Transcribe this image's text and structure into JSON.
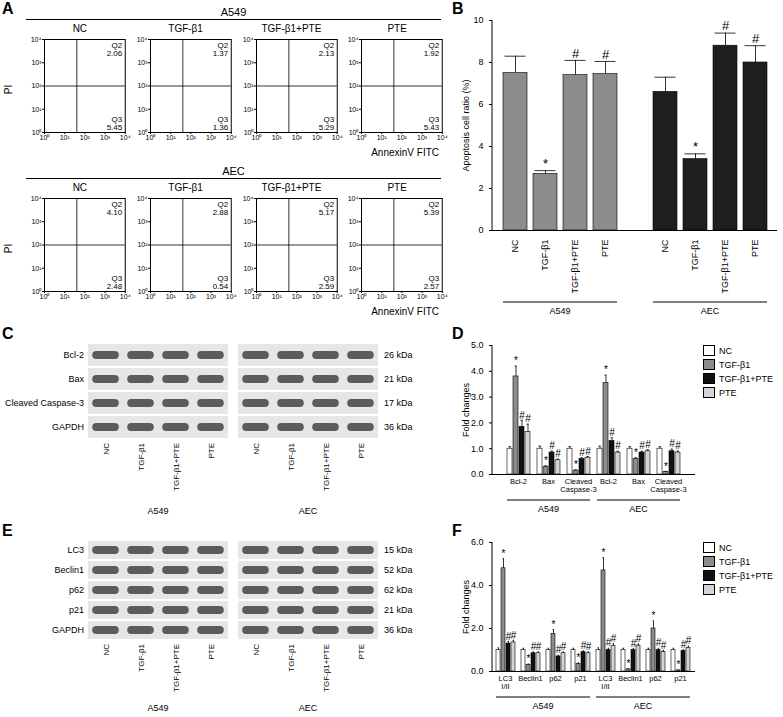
{
  "chart_data": [
    {
      "panel_label": "A",
      "type": "quadrant",
      "xlabel": "AnnexinV FITC",
      "ylabel": "PI",
      "log": true,
      "xlim": [
        1,
        10000
      ],
      "ylim": [
        1,
        10000
      ],
      "xticks": [
        {
          "value": 1,
          "label": "10⁰"
        },
        {
          "value": 10,
          "label": "10¹"
        },
        {
          "value": 100,
          "label": "10²"
        },
        {
          "value": 1000,
          "label": "10³"
        },
        {
          "value": 10000,
          "label": "10⁴"
        }
      ],
      "yticks": [
        {
          "value": 1,
          "label": "10⁰"
        },
        {
          "value": 10,
          "label": "10¹"
        },
        {
          "value": 100,
          "label": "10²"
        },
        {
          "value": 1000,
          "label": "10³"
        },
        {
          "value": 10000,
          "label": "10⁴"
        }
      ],
      "gate": {
        "x": 40,
        "y": 100
      },
      "groups": [
        {
          "title": "A549",
          "plots": [
            {
              "title": "NC",
              "quadrants": [
                {
                  "name": "Q2",
                  "value": 2.06,
                  "label": "2.06"
                },
                {
                  "name": "Q3",
                  "value": 5.45,
                  "label": "5.45"
                }
              ]
            },
            {
              "title": "TGF-β1",
              "quadrants": [
                {
                  "name": "Q2",
                  "value": 1.37,
                  "label": "1.37"
                },
                {
                  "name": "Q3",
                  "value": 1.36,
                  "label": "1.36"
                }
              ]
            },
            {
              "title": "TGF-β1+PTE",
              "quadrants": [
                {
                  "name": "Q2",
                  "value": 2.13,
                  "label": "2.13"
                },
                {
                  "name": "Q3",
                  "value": 5.29,
                  "label": "5.29"
                }
              ]
            },
            {
              "title": "PTE",
              "quadrants": [
                {
                  "name": "Q2",
                  "value": 1.92,
                  "label": "1.92"
                },
                {
                  "name": "Q3",
                  "value": 5.43,
                  "label": "5.43"
                }
              ]
            }
          ]
        },
        {
          "title": "AEC",
          "plots": [
            {
              "title": "NC",
              "quadrants": [
                {
                  "name": "Q2",
                  "value": 4.1,
                  "label": "4.10"
                },
                {
                  "name": "Q3",
                  "value": 2.48,
                  "label": "2.48"
                }
              ]
            },
            {
              "title": "TGF-β1",
              "quadrants": [
                {
                  "name": "Q2",
                  "value": 2.88,
                  "label": "2.88"
                },
                {
                  "name": "Q3",
                  "value": 0.54,
                  "label": "0.54"
                }
              ]
            },
            {
              "title": "TGF-β1+PTE",
              "quadrants": [
                {
                  "name": "Q2",
                  "value": 5.17,
                  "label": "5.17"
                },
                {
                  "name": "Q3",
                  "value": 2.59,
                  "label": "2.59"
                }
              ]
            },
            {
              "title": "PTE",
              "quadrants": [
                {
                  "name": "Q2",
                  "value": 5.39,
                  "label": "5.39"
                },
                {
                  "name": "Q3",
                  "value": 2.57,
                  "label": "2.57"
                }
              ]
            }
          ]
        }
      ]
    },
    {
      "panel_label": "B",
      "type": "bar",
      "ylabel": "Apoptosis cell ratio (%)",
      "ylim": [
        0,
        10
      ],
      "yticks": [
        0,
        2,
        4,
        6,
        8,
        10
      ],
      "categories": [
        "NC",
        "TGF-β1",
        "TGF-β1+PTE",
        "PTE"
      ],
      "series": [
        {
          "name": "A549",
          "color": "#8c8c8c",
          "values": [
            7.5,
            2.7,
            7.4,
            7.45
          ],
          "errors": [
            0.8,
            0.15,
            0.7,
            0.6
          ],
          "annotations": [
            null,
            "*",
            "#",
            "#"
          ]
        },
        {
          "name": "AEC",
          "color": "#1e1e1e",
          "values": [
            6.6,
            3.4,
            8.8,
            8.0
          ],
          "errors": [
            0.7,
            0.25,
            0.6,
            0.8
          ],
          "annotations": [
            null,
            "*",
            "#",
            "#"
          ]
        }
      ]
    },
    {
      "panel_label": "C",
      "type": "blot",
      "groups": [
        "A549",
        "AEC"
      ],
      "lanes": [
        "NC",
        "TGF-β1",
        "TGF-β1+PTE",
        "PTE"
      ],
      "rows": [
        {
          "name": "Bcl-2",
          "size": "26 kDa"
        },
        {
          "name": "Bax",
          "size": "21 kDa"
        },
        {
          "name": "Cleaved Caspase-3",
          "size": "17 kDa"
        },
        {
          "name": "GAPDH",
          "size": "36 kDa"
        }
      ]
    },
    {
      "panel_label": "D",
      "type": "bar",
      "ylabel": "Fold changes",
      "ylim": [
        0,
        5
      ],
      "yticks": [
        0,
        1,
        2,
        3,
        4,
        5
      ],
      "legend": "top-right",
      "categories": [
        "Bcl-2",
        "Bax",
        "Cleaved Caspase-3",
        "Bcl-2",
        "Bax",
        "Cleaved Caspase-3"
      ],
      "category_groups": [
        {
          "name": "A549",
          "count": 3
        },
        {
          "name": "AEC",
          "count": 3
        }
      ],
      "series": [
        {
          "name": "NC",
          "color": "#ffffff",
          "values": [
            1,
            1,
            1,
            1,
            1,
            1
          ],
          "errors": [
            0.08,
            0.1,
            0.08,
            0.1,
            0.08,
            0.08
          ],
          "annotations": [
            null,
            null,
            null,
            null,
            null,
            null
          ]
        },
        {
          "name": "TGF-β1",
          "color": "#8c8c8c",
          "values": [
            3.8,
            0.3,
            0.15,
            3.55,
            0.6,
            0.1
          ],
          "errors": [
            0.4,
            0.04,
            0.03,
            0.3,
            0.05,
            0.02
          ],
          "annotations": [
            "*",
            "*",
            "*",
            "*",
            "*",
            "*"
          ]
        },
        {
          "name": "TGF-β1+PTE",
          "color": "#111111",
          "values": [
            1.85,
            0.85,
            0.6,
            1.3,
            0.85,
            0.9
          ],
          "errors": [
            0.25,
            0.06,
            0.05,
            0.12,
            0.05,
            0.08
          ],
          "annotations": [
            "#",
            "#",
            "#",
            "#",
            "#",
            "#"
          ]
        },
        {
          "name": "PTE",
          "color": "#d4d4d4",
          "values": [
            1.65,
            0.55,
            0.65,
            0.85,
            0.9,
            0.85
          ],
          "errors": [
            0.3,
            0.05,
            0.05,
            0.05,
            0.06,
            0.06
          ],
          "annotations": [
            "#",
            "#",
            "#",
            "#",
            "#",
            "#"
          ]
        }
      ]
    },
    {
      "panel_label": "E",
      "type": "blot",
      "groups": [
        "A549",
        "AEC"
      ],
      "lanes": [
        "NC",
        "TGF-β1",
        "TGF-β1+PTE",
        "PTE"
      ],
      "rows": [
        {
          "name": "LC3",
          "size": "15 kDa"
        },
        {
          "name": "Beclin1",
          "size": "52 kDa"
        },
        {
          "name": "p62",
          "size": "62 kDa"
        },
        {
          "name": "p21",
          "size": "21 kDa"
        },
        {
          "name": "GAPDH",
          "size": "36 kDa"
        }
      ]
    },
    {
      "panel_label": "F",
      "type": "bar",
      "ylabel": "Fold changes",
      "ylim": [
        0,
        6
      ],
      "yticks": [
        0,
        2,
        4,
        6
      ],
      "legend": "top-right",
      "categories": [
        "LC3 I/II",
        "Beclin1",
        "p62",
        "p21",
        "LC3 I/II",
        "Beclin1",
        "p62",
        "p21"
      ],
      "category_groups": [
        {
          "name": "A549",
          "count": 4
        },
        {
          "name": "AEC",
          "count": 4
        }
      ],
      "series": [
        {
          "name": "NC",
          "color": "#ffffff",
          "values": [
            1,
            1,
            1,
            1,
            1,
            1,
            1,
            1
          ],
          "errors": [
            0.1,
            0.08,
            0.08,
            0.08,
            0.1,
            0.08,
            0.08,
            0.08
          ],
          "annotations": [
            null,
            null,
            null,
            null,
            null,
            null,
            null,
            null
          ]
        },
        {
          "name": "TGF-β1",
          "color": "#8c8c8c",
          "values": [
            4.8,
            0.3,
            1.75,
            0.35,
            4.7,
            0.1,
            2.0,
            0.05
          ],
          "errors": [
            0.45,
            0.05,
            0.2,
            0.05,
            0.6,
            0.03,
            0.35,
            0.02
          ],
          "annotations": [
            "*",
            "*",
            "*",
            "*",
            "*",
            "*",
            "*",
            "*"
          ]
        },
        {
          "name": "TGF-β1+PTE",
          "color": "#111111",
          "values": [
            1.3,
            0.85,
            0.7,
            0.9,
            1.0,
            1.0,
            1.0,
            0.95
          ],
          "errors": [
            0.1,
            0.06,
            0.06,
            0.06,
            0.08,
            0.06,
            0.08,
            0.06
          ],
          "annotations": [
            "#",
            "#",
            "#",
            "#",
            "#",
            "#",
            "#",
            "#"
          ]
        },
        {
          "name": "PTE",
          "color": "#d4d4d4",
          "values": [
            1.35,
            0.85,
            0.85,
            0.85,
            1.2,
            1.2,
            0.9,
            1.1
          ],
          "errors": [
            0.1,
            0.06,
            0.06,
            0.06,
            0.1,
            0.08,
            0.08,
            0.08
          ],
          "annotations": [
            "#",
            "#",
            "#",
            "#",
            "#",
            "#",
            "#",
            "#"
          ]
        }
      ]
    }
  ]
}
